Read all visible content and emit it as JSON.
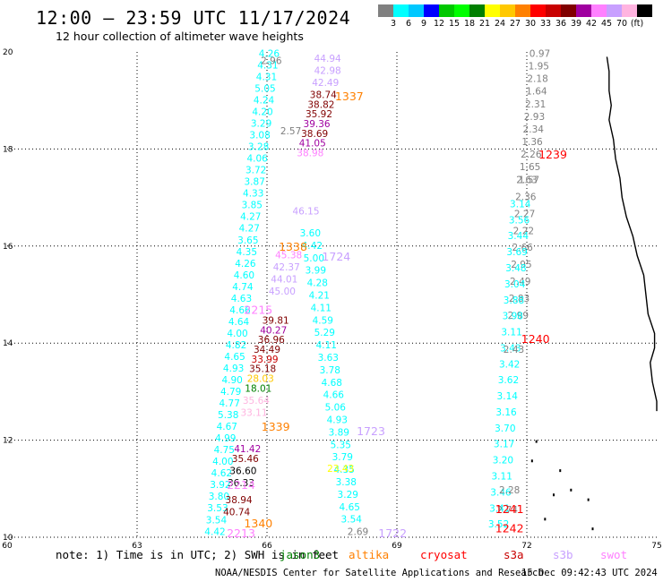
{
  "header": {
    "title": "12:00 – 23:59 UTC 11/17/2024",
    "subtitle": "12 hour collection of altimeter wave heights"
  },
  "legend": {
    "unit": "(ft)",
    "colors": [
      "#808080",
      "#00ffff",
      "#00c8ff",
      "#0000ff",
      "#00c800",
      "#00ff00",
      "#008000",
      "#ffff00",
      "#ffc800",
      "#ff8000",
      "#ff0000",
      "#c80000",
      "#800000",
      "#a000a0",
      "#ff80ff",
      "#c8a0ff",
      "#ffb4e0",
      "#000000"
    ],
    "ticks": [
      "3",
      "6",
      "9",
      "12",
      "15",
      "18",
      "21",
      "24",
      "27",
      "30",
      "33",
      "36",
      "39",
      "42",
      "45",
      "70"
    ]
  },
  "map": {
    "lon_labels": [
      "60",
      "63",
      "66",
      "69",
      "72",
      "75"
    ],
    "lat_labels": [
      "20",
      "18",
      "16",
      "14",
      "12",
      "10"
    ]
  },
  "chart_data": {
    "type": "map",
    "lon_range": [
      60,
      75
    ],
    "lat_range": [
      10,
      20
    ],
    "grid": true,
    "track_labels": [
      {
        "text": "1337",
        "color": "#ff8000",
        "lon": 67.9,
        "lat": 19.0
      },
      {
        "text": "1239",
        "color": "#ff0000",
        "lon": 72.6,
        "lat": 17.8
      },
      {
        "text": "1338",
        "color": "#ff8000",
        "lon": 66.6,
        "lat": 15.9
      },
      {
        "text": "1724",
        "color": "#c8a0ff",
        "lon": 67.6,
        "lat": 15.7
      },
      {
        "text": "2215",
        "color": "#ff80ff",
        "lon": 65.8,
        "lat": 14.6
      },
      {
        "text": "1240",
        "color": "#ff0000",
        "lon": 72.2,
        "lat": 14.0
      },
      {
        "text": "1339",
        "color": "#ff8000",
        "lon": 66.2,
        "lat": 12.2
      },
      {
        "text": "1723",
        "color": "#c8a0ff",
        "lon": 68.4,
        "lat": 12.1
      },
      {
        "text": "2214",
        "color": "#ff80ff",
        "lon": 65.4,
        "lat": 11.0
      },
      {
        "text": "1241",
        "color": "#ff0000",
        "lon": 71.6,
        "lat": 10.5
      },
      {
        "text": "1340",
        "color": "#ff8000",
        "lon": 65.8,
        "lat": 10.2
      },
      {
        "text": "1242",
        "color": "#ff0000",
        "lon": 71.6,
        "lat": 10.1
      },
      {
        "text": "2213",
        "color": "#ff80ff",
        "lon": 65.4,
        "lat": 10.0
      },
      {
        "text": "1722",
        "color": "#c8a0ff",
        "lon": 68.9,
        "lat": 10.0
      }
    ],
    "tracks": [
      {
        "name": "jason3 (left)",
        "color": "#00ffff",
        "lon_start": 66.05,
        "lat_start": 19.9,
        "lon_end": 64.8,
        "lat_end": 10.05,
        "values": [
          "4.26",
          "4.31",
          "4.31",
          "5.05",
          "4.24",
          "4.20",
          "3.29",
          "3.08",
          "3.28",
          "4.06",
          "3.72",
          "3.87",
          "4.33",
          "3.85",
          "4.27",
          "4.27",
          "3.65",
          "4.35",
          "4.26",
          "4.60",
          "4.74",
          "4.63",
          "4.66",
          "4.64",
          "4.00",
          "4.82",
          "4.65",
          "4.93",
          "4.90",
          "4.79",
          "4.77",
          "5.38",
          "4.67",
          "4.99",
          "4.75",
          "4.00",
          "4.62",
          "3.92",
          "3.80",
          "3.53",
          "3.54",
          "4.42"
        ]
      },
      {
        "name": "jason3 (right)",
        "color": "#00ffff",
        "lon_start": 67.0,
        "lat_start": 16.2,
        "lon_end": 67.95,
        "lat_end": 10.3,
        "values": [
          "3.60",
          "4.42",
          "5.00",
          "3.99",
          "4.28",
          "4.21",
          "4.11",
          "4.59",
          "5.29",
          "4.11",
          "3.63",
          "3.78",
          "4.68",
          "4.66",
          "5.06",
          "4.93",
          "3.89",
          "5.35",
          "3.79",
          "4.35",
          "3.38",
          "3.29",
          "4.65",
          "3.54"
        ]
      },
      {
        "name": "altika",
        "color": "#808080",
        "lon_start": 72.3,
        "lat_start": 19.9,
        "lon_end": 72.05,
        "lat_end": 17.3,
        "values": [
          "0.97",
          "1.95",
          "2.18",
          "1.64",
          "2.31",
          "2.93",
          "2.34",
          "1.36",
          "2.26",
          "1.65",
          "1.57"
        ]
      },
      {
        "name": "altika2",
        "color": "#808080",
        "lon_start": 72.0,
        "lat_start": 17.3,
        "lon_end": 71.8,
        "lat_end": 14.5,
        "values": [
          "2.63",
          "2.36",
          "2.27",
          "2.22",
          "2.66",
          "2.95",
          "2.49",
          "2.83",
          "2.99"
        ]
      },
      {
        "name": "altika-blue",
        "color": "#00ffff",
        "lon_start": 71.85,
        "lat_start": 16.8,
        "lon_end": 71.35,
        "lat_end": 10.2,
        "values": [
          "3.14",
          "3.56",
          "3.44",
          "3.69",
          "3.48",
          "3.04",
          "3.88",
          "3.98",
          "3.11",
          "3.43",
          "3.42",
          "3.62",
          "3.14",
          "3.16",
          "3.70",
          "3.17",
          "3.20",
          "3.11",
          "3.46",
          "3.41",
          "3.52"
        ]
      }
    ],
    "mixed_values": [
      {
        "t": "2.96",
        "c": "#808080",
        "lon": 66.1,
        "lat": 19.75
      },
      {
        "t": "44.94",
        "c": "#c8a0ff",
        "lon": 67.4,
        "lat": 19.8
      },
      {
        "t": "42.98",
        "c": "#c8a0ff",
        "lon": 67.4,
        "lat": 19.55
      },
      {
        "t": "42.49",
        "c": "#c8a0ff",
        "lon": 67.35,
        "lat": 19.3
      },
      {
        "t": "38.74",
        "c": "#800000",
        "lon": 67.3,
        "lat": 19.05
      },
      {
        "t": "38.82",
        "c": "#800000",
        "lon": 67.25,
        "lat": 18.85
      },
      {
        "t": "35.92",
        "c": "#800000",
        "lon": 67.2,
        "lat": 18.65
      },
      {
        "t": "39.36",
        "c": "#a000a0",
        "lon": 67.15,
        "lat": 18.45
      },
      {
        "t": "38.69",
        "c": "#800000",
        "lon": 67.1,
        "lat": 18.25
      },
      {
        "t": "41.05",
        "c": "#a000a0",
        "lon": 67.05,
        "lat": 18.05
      },
      {
        "t": "38.98",
        "c": "#ff80ff",
        "lon": 67.0,
        "lat": 17.85
      },
      {
        "t": "2.57",
        "c": "#808080",
        "lon": 66.55,
        "lat": 18.3
      },
      {
        "t": "39.81",
        "c": "#800000",
        "lon": 66.2,
        "lat": 14.4
      },
      {
        "t": "40.27",
        "c": "#a000a0",
        "lon": 66.15,
        "lat": 14.2
      },
      {
        "t": "36.96",
        "c": "#800000",
        "lon": 66.1,
        "lat": 14.0
      },
      {
        "t": "34.49",
        "c": "#800000",
        "lon": 66.0,
        "lat": 13.8
      },
      {
        "t": "33.99",
        "c": "#c80000",
        "lon": 65.95,
        "lat": 13.6
      },
      {
        "t": "35.18",
        "c": "#800000",
        "lon": 65.9,
        "lat": 13.4
      },
      {
        "t": "28.03",
        "c": "#ffc800",
        "lon": 65.85,
        "lat": 13.2
      },
      {
        "t": "18.01",
        "c": "#008000",
        "lon": 65.8,
        "lat": 13.0
      },
      {
        "t": "35.64",
        "c": "#ffb4e0",
        "lon": 65.75,
        "lat": 12.75
      },
      {
        "t": "33.11",
        "c": "#ffb4e0",
        "lon": 65.7,
        "lat": 12.5
      },
      {
        "t": "41.42",
        "c": "#a000a0",
        "lon": 65.55,
        "lat": 11.75
      },
      {
        "t": "35.46",
        "c": "#800000",
        "lon": 65.5,
        "lat": 11.55
      },
      {
        "t": "36.60",
        "c": "#000000",
        "lon": 65.45,
        "lat": 11.3
      },
      {
        "t": "36.33",
        "c": "#000000",
        "lon": 65.4,
        "lat": 11.05
      },
      {
        "t": "38.94",
        "c": "#800000",
        "lon": 65.35,
        "lat": 10.7
      },
      {
        "t": "40.74",
        "c": "#800000",
        "lon": 65.3,
        "lat": 10.45
      },
      {
        "t": "23.43",
        "c": "#ffff00",
        "lon": 67.7,
        "lat": 11.35
      },
      {
        "t": "2.28",
        "c": "#808080",
        "lon": 71.6,
        "lat": 10.9
      },
      {
        "t": "2.74",
        "c": "#808080",
        "lon": 71.55,
        "lat": 10.5
      },
      {
        "t": "2.43",
        "c": "#808080",
        "lon": 71.7,
        "lat": 13.8
      },
      {
        "t": "2.69",
        "c": "#808080",
        "lon": 68.1,
        "lat": 10.05
      },
      {
        "t": "46.15",
        "c": "#c8a0ff",
        "lon": 66.9,
        "lat": 16.65
      },
      {
        "t": "45.38",
        "c": "#ff80ff",
        "lon": 66.5,
        "lat": 15.75
      },
      {
        "t": "42.37",
        "c": "#c8a0ff",
        "lon": 66.45,
        "lat": 15.5
      },
      {
        "t": "44.01",
        "c": "#c8a0ff",
        "lon": 66.4,
        "lat": 15.25
      },
      {
        "t": "45.00",
        "c": "#c8a0ff",
        "lon": 66.35,
        "lat": 15.0
      }
    ]
  },
  "note": {
    "prefix": "note: 1) Time is in UTC; 2) SWH is in feet",
    "missions": [
      {
        "name": "jason3",
        "color": "#008000"
      },
      {
        "name": "altika",
        "color": "#ff8000"
      },
      {
        "name": "cryosat",
        "color": "#ff0000"
      },
      {
        "name": "s3a",
        "color": "#c80000"
      },
      {
        "name": "s3b",
        "color": "#c8a0ff"
      },
      {
        "name": "swot",
        "color": "#ff80ff"
      }
    ]
  },
  "footer": {
    "credit": "NOAA/NESDIS Center for Satellite Applications and Research",
    "timestamp": "15 Dec 09:42:43 UTC 2024"
  }
}
